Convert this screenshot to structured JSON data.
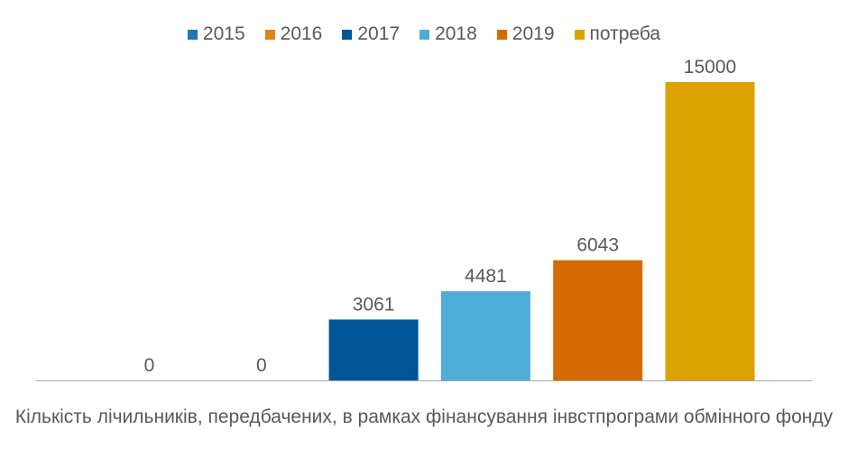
{
  "chart_data": {
    "type": "bar",
    "categories": [
      "Кількість лічильників, передбачених,  в рамках фінансування інвстпрограми обмінного фонду"
    ],
    "xlabel": "Кількість лічильників, передбачених,  в рамках фінансування інвстпрограми обмінного фонду",
    "ylim": [
      0,
      15000
    ],
    "grid": false,
    "legend_position": "top",
    "data_labels": true,
    "series": [
      {
        "name": "2015",
        "values": [
          0
        ],
        "color": "#1F77B4"
      },
      {
        "name": "2016",
        "values": [
          0
        ],
        "color": "#E08214"
      },
      {
        "name": "2017",
        "values": [
          3061
        ],
        "color": "#005596"
      },
      {
        "name": "2018",
        "values": [
          4481
        ],
        "color": "#4FADD8"
      },
      {
        "name": "2019",
        "values": [
          6043
        ],
        "color": "#D46A04"
      },
      {
        "name": "потреба",
        "values": [
          15000
        ],
        "color": "#DBA200"
      }
    ]
  }
}
